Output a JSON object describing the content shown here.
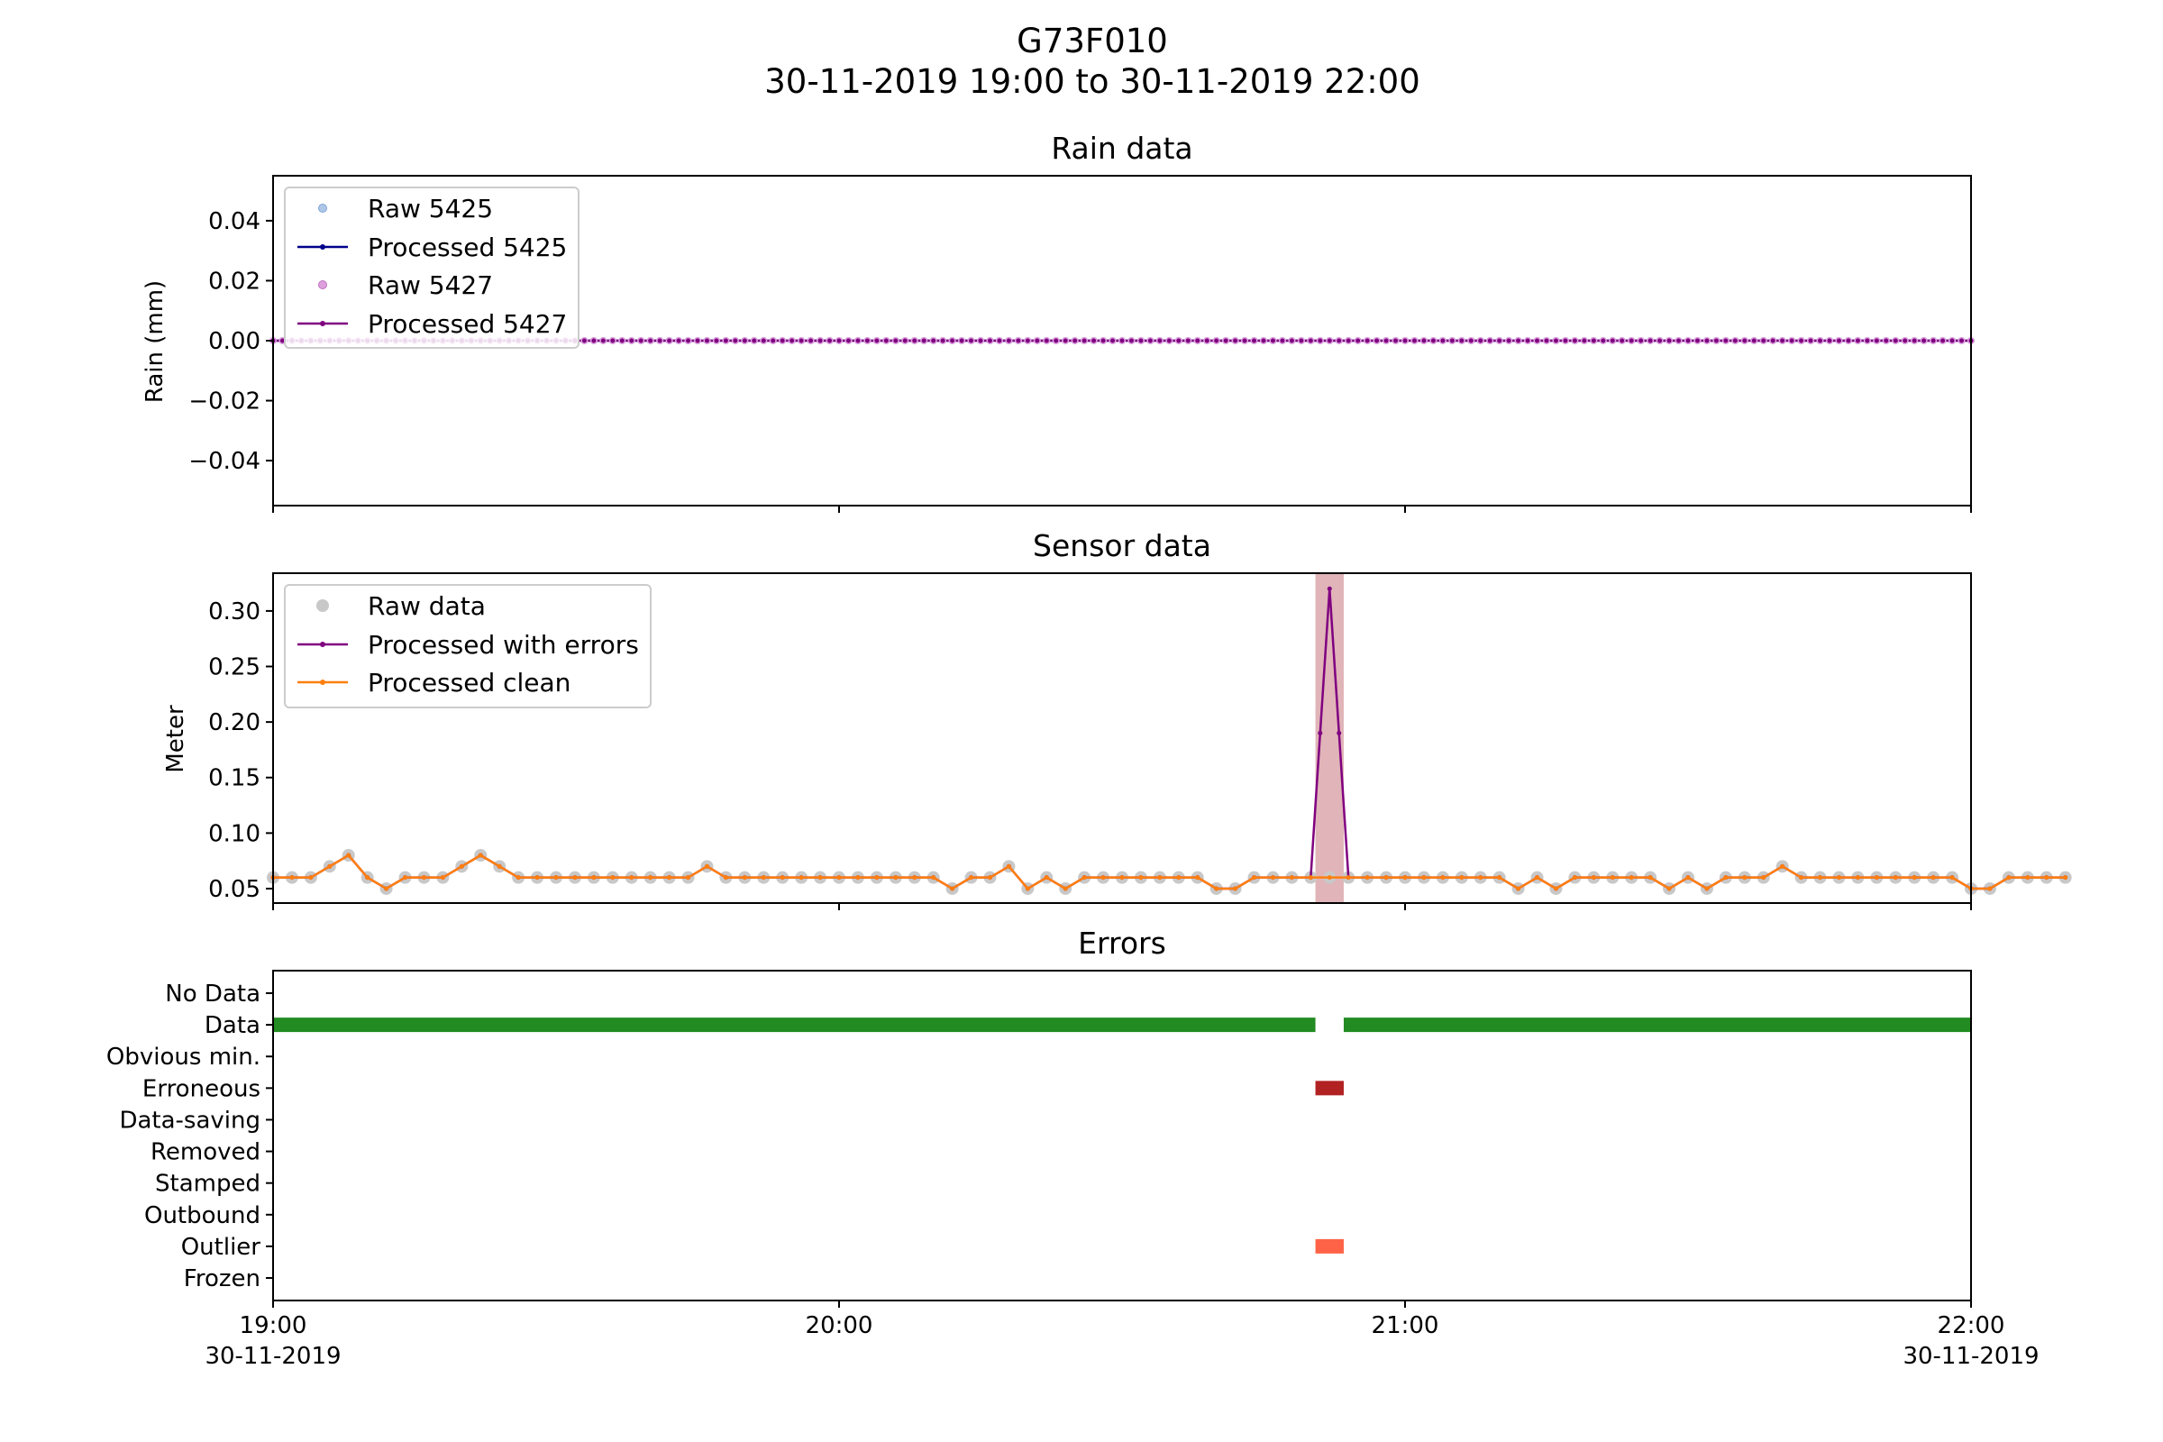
{
  "figure": {
    "title": "G73F010",
    "subtitle": "30-11-2019 19:00 to 30-11-2019 22:00"
  },
  "x_axis": {
    "range_minutes": [
      0,
      180
    ],
    "ticks": [
      {
        "minute": 0,
        "time": "19:00",
        "date": "30-11-2019"
      },
      {
        "minute": 60,
        "time": "20:00",
        "date": ""
      },
      {
        "minute": 120,
        "time": "21:00",
        "date": ""
      },
      {
        "minute": 180,
        "time": "22:00",
        "date": "30-11-2019"
      }
    ]
  },
  "chart_data": [
    {
      "type": "line",
      "title": "Rain data",
      "ylabel": "Rain (mm)",
      "ylim": [
        -0.055,
        0.055
      ],
      "yticks": [
        "0.04",
        "0.02",
        "0.00",
        "−0.02",
        "−0.04"
      ],
      "ytick_values": [
        0.04,
        0.02,
        0.0,
        -0.02,
        -0.04
      ],
      "x_step_minutes": 1,
      "constant_value": 0.0,
      "legend_position": "upper-left",
      "series": [
        {
          "name": "Raw 5425",
          "style": "points",
          "color": "#aec7e8",
          "values": "all 0.00"
        },
        {
          "name": "Processed 5425",
          "style": "line-with-markers",
          "color": "#00008b",
          "values": "all 0.00"
        },
        {
          "name": "Raw 5427",
          "style": "points",
          "color": "#dda0dd",
          "values": "all 0.00"
        },
        {
          "name": "Processed 5427",
          "style": "line-with-markers",
          "color": "#800080",
          "values": "all 0.00"
        }
      ]
    },
    {
      "type": "line",
      "title": "Sensor data",
      "ylabel": "Meter",
      "ylim": [
        0.037,
        0.334
      ],
      "yticks": [
        "0.30",
        "0.25",
        "0.20",
        "0.15",
        "0.10",
        "0.05"
      ],
      "ytick_values": [
        0.3,
        0.25,
        0.2,
        0.15,
        0.1,
        0.05
      ],
      "x_step_minutes": 2,
      "legend_position": "upper-left",
      "error_span_minutes": [
        110.5,
        113.5
      ],
      "error_span_color": "#e0b4b8",
      "series": [
        {
          "name": "Raw data",
          "style": "points",
          "color": "#c8c8c8"
        },
        {
          "name": "Processed with errors",
          "style": "line-with-markers",
          "color": "#800080"
        },
        {
          "name": "Processed clean",
          "style": "line-with-markers",
          "color": "#ff7f0e"
        }
      ],
      "clean_values": [
        0.06,
        0.06,
        0.06,
        0.07,
        0.08,
        0.06,
        0.05,
        0.06,
        0.06,
        0.06,
        0.07,
        0.08,
        0.07,
        0.06,
        0.06,
        0.06,
        0.06,
        0.06,
        0.06,
        0.06,
        0.06,
        0.06,
        0.06,
        0.07,
        0.06,
        0.06,
        0.06,
        0.06,
        0.06,
        0.06,
        0.06,
        0.06,
        0.06,
        0.06,
        0.06,
        0.06,
        0.05,
        0.06,
        0.06,
        0.07,
        0.05,
        0.06,
        0.05,
        0.06,
        0.06,
        0.06,
        0.06,
        0.06,
        0.06,
        0.06,
        0.05,
        0.05,
        0.06,
        0.06,
        0.06,
        0.06,
        0.06,
        0.06,
        0.06,
        0.06,
        0.06,
        0.06,
        0.06,
        0.06,
        0.06,
        0.06,
        0.05,
        0.06,
        0.05,
        0.06,
        0.06,
        0.06,
        0.06,
        0.06,
        0.05,
        0.06,
        0.05,
        0.06,
        0.06,
        0.06,
        0.07,
        0.06,
        0.06,
        0.06,
        0.06,
        0.06,
        0.06,
        0.06,
        0.06,
        0.06,
        0.05,
        0.05,
        0.06,
        0.06,
        0.06,
        0.06
      ],
      "error_overrides": [
        {
          "minute": 110,
          "value": 0.06
        },
        {
          "minute": 111,
          "value": 0.19
        },
        {
          "minute": 112,
          "value": 0.32
        },
        {
          "minute": 113,
          "value": 0.19
        },
        {
          "minute": 114,
          "value": 0.06
        }
      ]
    },
    {
      "type": "bar",
      "title": "Errors",
      "categories": [
        "No Data",
        "Data",
        "Obvious min.",
        "Erroneous",
        "Data-saving",
        "Removed",
        "Stamped",
        "Outbound",
        "Outlier",
        "Frozen"
      ],
      "segments": [
        {
          "category": "Data",
          "start_minute": 0,
          "end_minute": 110.5,
          "color": "#228b22"
        },
        {
          "category": "Data",
          "start_minute": 113.5,
          "end_minute": 180,
          "color": "#228b22"
        },
        {
          "category": "Erroneous",
          "start_minute": 110.5,
          "end_minute": 113.5,
          "color": "#b22222"
        },
        {
          "category": "Outlier",
          "start_minute": 110.5,
          "end_minute": 113.5,
          "color": "#ff6347"
        }
      ]
    }
  ]
}
